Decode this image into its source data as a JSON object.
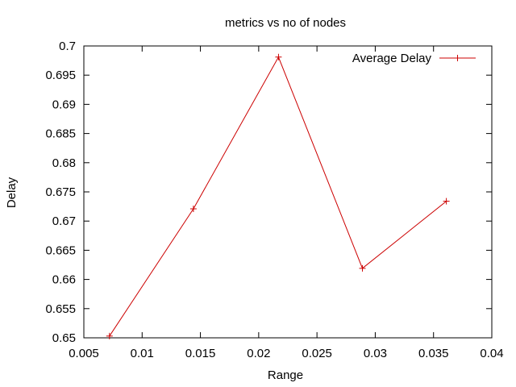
{
  "chart_data": {
    "type": "line",
    "title": "metrics vs no of nodes",
    "xlabel": "Range",
    "ylabel": "Delay",
    "xlim": [
      0.005,
      0.04
    ],
    "ylim": [
      0.65,
      0.7
    ],
    "xticks": [
      "0.005",
      "0.01",
      "0.015",
      "0.02",
      "0.025",
      "0.03",
      "0.035",
      "0.04"
    ],
    "yticks": [
      "0.65",
      "0.655",
      "0.66",
      "0.665",
      "0.67",
      "0.675",
      "0.68",
      "0.685",
      "0.69",
      "0.695",
      "0.7"
    ],
    "grid": false,
    "legend_position": "top-right",
    "series": [
      {
        "name": "Average Delay",
        "color": "#cc0000",
        "marker": "plus",
        "x": [
          0.0072,
          0.0144,
          0.0217,
          0.0289,
          0.0361
        ],
        "y": [
          0.6503,
          0.6721,
          0.6981,
          0.6619,
          0.6734
        ]
      }
    ]
  }
}
